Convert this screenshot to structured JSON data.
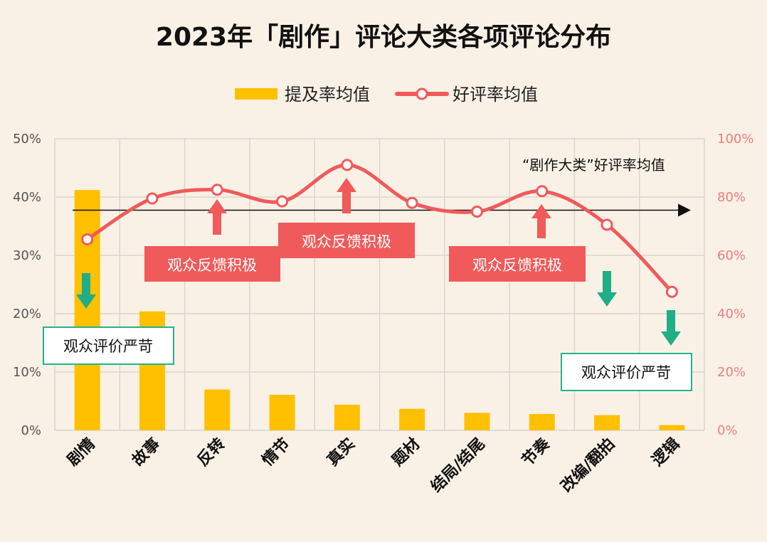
{
  "chart_data": {
    "type": "bar",
    "title": "2023年「剧作」评论大类各项评论分布",
    "categories": [
      "剧情",
      "故事",
      "反转",
      "情节",
      "真实",
      "题材",
      "结局/结尾",
      "节奏",
      "改编/翻拍",
      "逻辑"
    ],
    "series": [
      {
        "name": "提及率均值",
        "type": "bar",
        "axis": "left",
        "color": "#ffc000",
        "values": [
          41.2,
          20.4,
          7.0,
          6.1,
          4.4,
          3.7,
          3.0,
          2.8,
          2.6,
          0.9
        ]
      },
      {
        "name": "好评率均值",
        "type": "line",
        "axis": "right",
        "color": "#f05a5a",
        "values": [
          65.5,
          79.5,
          82.5,
          78.5,
          91.0,
          78.0,
          75.0,
          82.0,
          70.5,
          47.5
        ]
      }
    ],
    "y_left": {
      "ticks": [
        "0%",
        "10%",
        "20%",
        "30%",
        "40%",
        "50%"
      ],
      "range": [
        0,
        50
      ]
    },
    "y_right": {
      "ticks": [
        "0%",
        "20%",
        "40%",
        "60%",
        "80%",
        "100%"
      ],
      "range": [
        0,
        100
      ]
    },
    "reference_line": {
      "label": "“剧作大类”好评率均值",
      "value": 75.5
    },
    "grid": true,
    "legend_position": "top",
    "annotations": {
      "positive": [
        {
          "text": "观众反馈积极",
          "anchor_index": 2
        },
        {
          "text": "观众反馈积极",
          "anchor_index": 4
        },
        {
          "text": "观众反馈积极",
          "anchor_index": 7
        }
      ],
      "negative": [
        {
          "text": "观众评价严苛",
          "anchor_index": 0
        },
        {
          "text": "观众评价严苛",
          "anchor_index": 9
        }
      ],
      "extra_down_arrow_index": 8
    },
    "colors": {
      "bar": "#ffc000",
      "line": "#f05a5a",
      "positive_box": "#f05a5a",
      "negative_border": "#22b48a",
      "down_arrow": "#1fae86",
      "up_arrow": "#f05a5a"
    }
  }
}
